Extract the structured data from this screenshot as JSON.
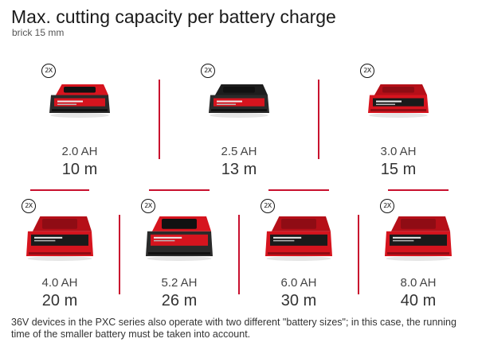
{
  "title": "Max. cutting capacity per battery charge",
  "subtitle": "brick 15 mm",
  "badge_label": "2X",
  "batteries": [
    {
      "capacity": "2.0 AH",
      "distance": "10 m",
      "style": "compact"
    },
    {
      "capacity": "2.5 AH",
      "distance": "13 m",
      "style": "compact-dark"
    },
    {
      "capacity": "3.0 AH",
      "distance": "15 m",
      "style": "compact-red"
    },
    {
      "capacity": "4.0 AH",
      "distance": "20 m",
      "style": "mid"
    },
    {
      "capacity": "5.2 AH",
      "distance": "26 m",
      "style": "large-dark"
    },
    {
      "capacity": "6.0 AH",
      "distance": "30 m",
      "style": "large"
    },
    {
      "capacity": "8.0 AH",
      "distance": "40 m",
      "style": "large"
    }
  ],
  "footnote": "36V devices in the PXC series also operate with two different \"battery sizes\"; in this case, the running time of the smaller battery must be taken into account.",
  "colors": {
    "accent": "#c8102e",
    "battery_red": "#d6141e",
    "battery_dark": "#2a2a2a"
  }
}
